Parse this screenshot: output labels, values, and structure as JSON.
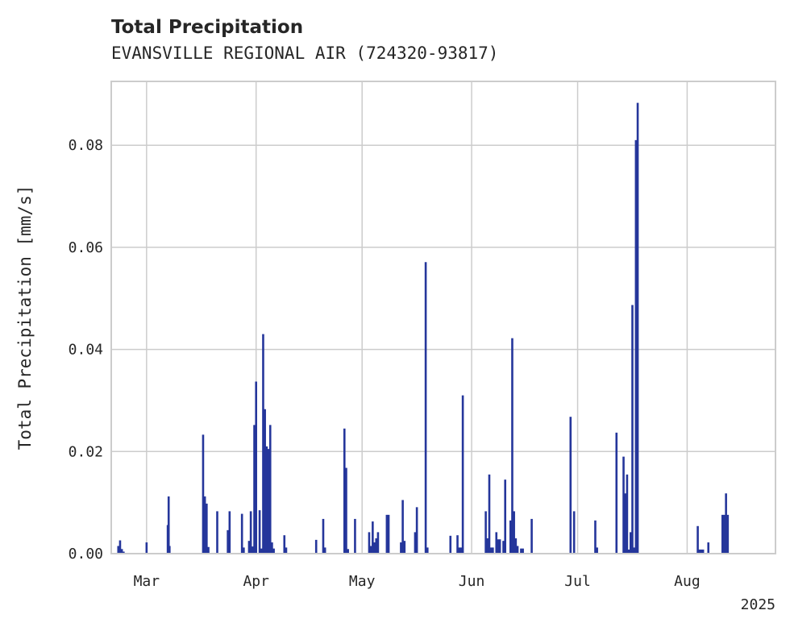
{
  "chart_data": {
    "type": "bar",
    "title": "Total Precipitation",
    "subtitle": "EVANSVILLE REGIONAL AIR (724320-93817)",
    "xlabel": "",
    "ylabel": "Total Precipitation [mm/s]",
    "ylim": [
      0,
      0.0925
    ],
    "xlim": [
      "2025-02-19",
      "2025-08-26"
    ],
    "grid": true,
    "bar_color": "#25369b",
    "y_ticks": [
      0.0,
      0.02,
      0.04,
      0.06,
      0.08
    ],
    "y_tick_labels": [
      "0.00",
      "0.02",
      "0.04",
      "0.06",
      "0.08"
    ],
    "x_ticks": [
      "2025-03-01",
      "2025-04-01",
      "2025-05-01",
      "2025-06-01",
      "2025-07-01",
      "2025-08-01"
    ],
    "x_tick_labels": [
      "Mar",
      "Apr",
      "May",
      "Jun",
      "Jul",
      "Aug"
    ],
    "x_year_label": "2025",
    "x": [
      "2025-02-21T00:00",
      "2025-02-21T12:00",
      "2025-02-22T00:00",
      "2025-02-22T12:00",
      "2025-03-01T00:00",
      "2025-03-07T00:00",
      "2025-03-07T06:00",
      "2025-03-07T12:00",
      "2025-03-17T00:00",
      "2025-03-17T12:00",
      "2025-03-18T00:00",
      "2025-03-18T12:00",
      "2025-03-21T00:00",
      "2025-03-24T00:00",
      "2025-03-24T12:00",
      "2025-03-28T00:00",
      "2025-03-28T12:00",
      "2025-03-30T00:00",
      "2025-03-30T12:00",
      "2025-03-31T00:00",
      "2025-03-31T12:00",
      "2025-04-01T00:00",
      "2025-04-02T00:00",
      "2025-04-02T12:00",
      "2025-04-03T00:00",
      "2025-04-03T06:00",
      "2025-04-03T12:00",
      "2025-04-04T00:00",
      "2025-04-04T12:00",
      "2025-04-05T00:00",
      "2025-04-05T12:00",
      "2025-04-06T00:00",
      "2025-04-09T00:00",
      "2025-04-09T12:00",
      "2025-04-18T00:00",
      "2025-04-20T00:00",
      "2025-04-20T12:00",
      "2025-04-26T00:00",
      "2025-04-26T12:00",
      "2025-04-27T00:00",
      "2025-04-29T00:00",
      "2025-05-03T00:00",
      "2025-05-03T12:00",
      "2025-05-04T00:00",
      "2025-05-04T12:00",
      "2025-05-05T00:00",
      "2025-05-05T12:00",
      "2025-05-08T00:00",
      "2025-05-08T12:00",
      "2025-05-12T00:00",
      "2025-05-12T12:00",
      "2025-05-13T00:00",
      "2025-05-16T00:00",
      "2025-05-16T12:00",
      "2025-05-19T00:00",
      "2025-05-19T12:00",
      "2025-05-26T00:00",
      "2025-05-28T00:00",
      "2025-05-28T12:00",
      "2025-05-29T00:00",
      "2025-05-29T12:00",
      "2025-06-05T00:00",
      "2025-06-05T12:00",
      "2025-06-06T00:00",
      "2025-06-06T12:00",
      "2025-06-07T00:00",
      "2025-06-08T00:00",
      "2025-06-08T12:00",
      "2025-06-09T00:00",
      "2025-06-10T00:00",
      "2025-06-10T12:00",
      "2025-06-12T00:00",
      "2025-06-12T12:00",
      "2025-06-13T00:00",
      "2025-06-13T12:00",
      "2025-06-14T00:00",
      "2025-06-15T00:00",
      "2025-06-15T12:00",
      "2025-06-18T00:00",
      "2025-06-29T00:00",
      "2025-06-30T00:00",
      "2025-07-06T00:00",
      "2025-07-06T12:00",
      "2025-07-12T00:00",
      "2025-07-14T00:00",
      "2025-07-14T12:00",
      "2025-07-15T00:00",
      "2025-07-15T12:00",
      "2025-07-16T00:00",
      "2025-07-16T12:00",
      "2025-07-17T00:00",
      "2025-07-17T12:00",
      "2025-07-18T00:00",
      "2025-08-04T00:00",
      "2025-08-04T12:00",
      "2025-08-05T00:00",
      "2025-08-05T12:00",
      "2025-08-07T00:00",
      "2025-08-11T00:00",
      "2025-08-11T12:00",
      "2025-08-12T00:00",
      "2025-08-12T12:00"
    ],
    "series": [
      {
        "values": [
          0.0015,
          0.0026,
          0.0009,
          0.0004,
          0.0022,
          0.0056,
          0.0112,
          0.0015,
          0.0233,
          0.0112,
          0.0098,
          0.0013,
          0.0083,
          0.0046,
          0.0083,
          0.0078,
          0.0012,
          0.0025,
          0.0083,
          0.0014,
          0.0252,
          0.0337,
          0.0085,
          0.001,
          0.043,
          0.015,
          0.0283,
          0.021,
          0.0205,
          0.0252,
          0.0022,
          0.001,
          0.0036,
          0.0012,
          0.0027,
          0.0068,
          0.0012,
          0.0245,
          0.0168,
          0.0009,
          0.0068,
          0.0042,
          0.0015,
          0.0063,
          0.0022,
          0.003,
          0.0042,
          0.0076,
          0.0076,
          0.0022,
          0.0105,
          0.0025,
          0.0042,
          0.0091,
          0.0571,
          0.0012,
          0.0035,
          0.0036,
          0.0012,
          0.0012,
          0.031,
          0.0083,
          0.003,
          0.0155,
          0.0012,
          0.0012,
          0.0042,
          0.0028,
          0.0028,
          0.0025,
          0.0145,
          0.0065,
          0.0422,
          0.0083,
          0.003,
          0.0015,
          0.001,
          0.001,
          0.0068,
          0.0268,
          0.0083,
          0.0065,
          0.0012,
          0.0237,
          0.019,
          0.0118,
          0.0155,
          0.0008,
          0.0042,
          0.0487,
          0.0012,
          0.081,
          0.0883,
          0.0054,
          0.0008,
          0.0008,
          0.0008,
          0.0022,
          0.0076,
          0.0076,
          0.0118,
          0.0076
        ]
      }
    ]
  }
}
